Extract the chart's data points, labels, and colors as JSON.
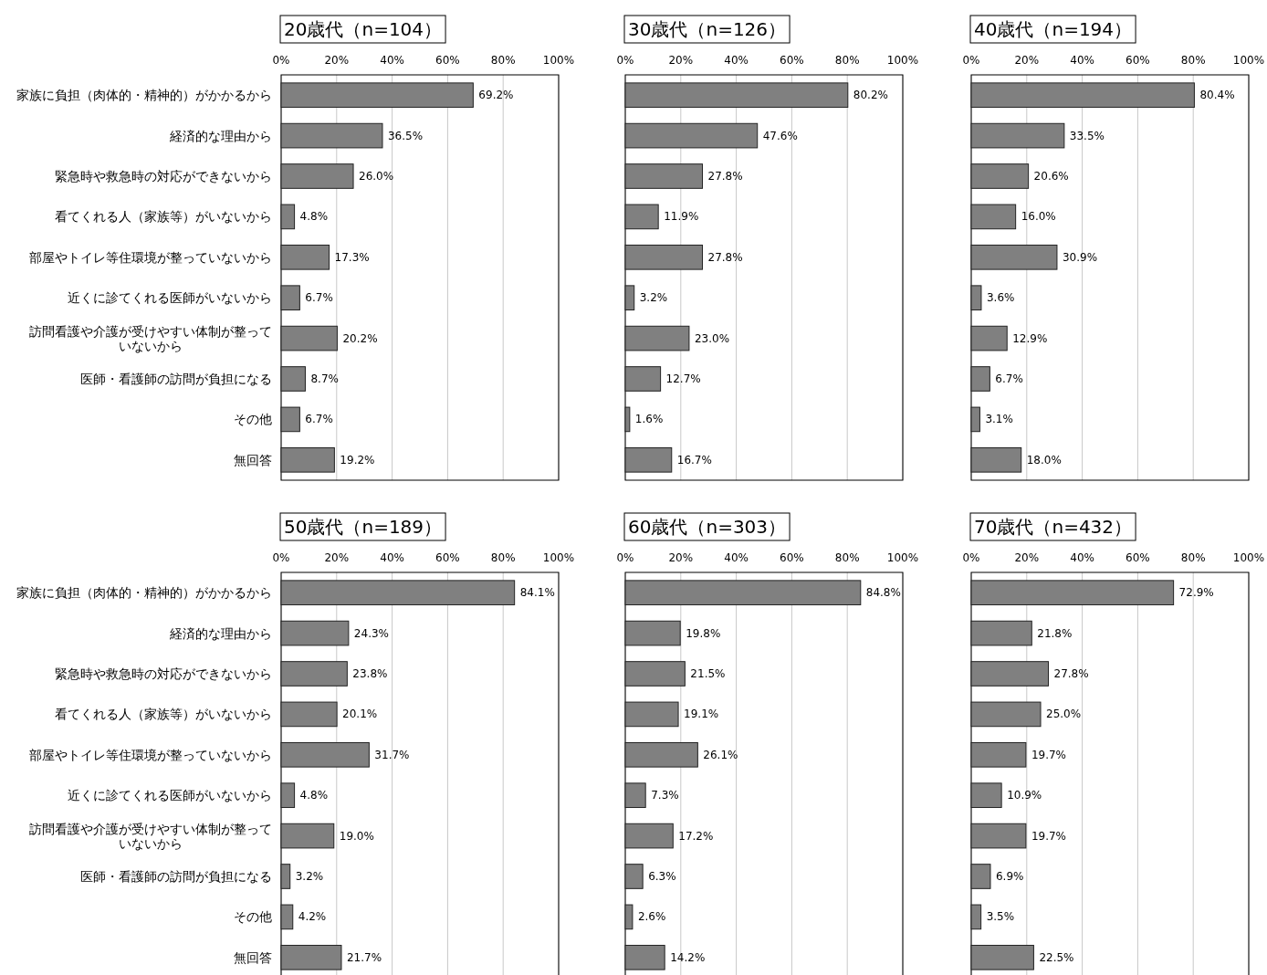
{
  "chart_data": [
    {
      "type": "bar",
      "orientation": "horizontal",
      "title": "20歳代（n=104）",
      "categories": [
        "家族に負担（肉体的・精神的）がかかるから",
        "経済的な理由から",
        "緊急時や救急時の対応ができないから",
        "看てくれる人（家族等）がいないから",
        "部屋やトイレ等住環境が整っていないから",
        "近くに診てくれる医師がいないから",
        "訪問看護や介護が受けやすい体制が整っていないから",
        "医師・看護師の訪問が負担になる",
        "その他",
        "無回答"
      ],
      "values": [
        69.2,
        36.5,
        26.0,
        4.8,
        17.3,
        6.7,
        20.2,
        8.7,
        6.7,
        19.2
      ],
      "value_labels": [
        "69.2%",
        "36.5%",
        "26.0%",
        "4.8%",
        "17.3%",
        "6.7%",
        "20.2%",
        "8.7%",
        "6.7%",
        "19.2%"
      ],
      "color": "#808080",
      "xlim": [
        0,
        100
      ],
      "xticks": [
        {
          "value": 0,
          "label": "0%"
        },
        {
          "value": 20,
          "label": "20%"
        },
        {
          "value": 40,
          "label": "40%"
        },
        {
          "value": 60,
          "label": "60%"
        },
        {
          "value": 80,
          "label": "80%"
        },
        {
          "value": 100,
          "label": "100%"
        }
      ],
      "grid": "x"
    },
    {
      "type": "bar",
      "orientation": "horizontal",
      "title": "30歳代（n=126）",
      "categories": [
        "家族に負担（肉体的・精神的）がかかるから",
        "経済的な理由から",
        "緊急時や救急時の対応ができないから",
        "看てくれる人（家族等）がいないから",
        "部屋やトイレ等住環境が整っていないから",
        "近くに診てくれる医師がいないから",
        "訪問看護や介護が受けやすい体制が整っていないから",
        "医師・看護師の訪問が負担になる",
        "その他",
        "無回答"
      ],
      "tick_labels": "x",
      "values": [
        80.2,
        47.6,
        27.8,
        11.9,
        27.8,
        3.2,
        23.0,
        12.7,
        1.6,
        16.7
      ],
      "value_labels": [
        "80.2%",
        "47.6%",
        "27.8%",
        "11.9%",
        "27.8%",
        "3.2%",
        "23.0%",
        "12.7%",
        "1.6%",
        "16.7%"
      ],
      "color": "#808080",
      "xlim": [
        0,
        100
      ],
      "xticks": [
        {
          "value": 0,
          "label": "0%"
        },
        {
          "value": 20,
          "label": "20%"
        },
        {
          "value": 40,
          "label": "40%"
        },
        {
          "value": 60,
          "label": "60%"
        },
        {
          "value": 80,
          "label": "80%"
        },
        {
          "value": 100,
          "label": "100%"
        }
      ],
      "grid": "x"
    },
    {
      "type": "bar",
      "orientation": "horizontal",
      "title": "40歳代（n=194）",
      "categories": [
        "家族に負担（肉体的・精神的）がかかるから",
        "経済的な理由から",
        "緊急時や救急時の対応ができないから",
        "看てくれる人（家族等）がいないから",
        "部屋やトイレ等住環境が整っていないから",
        "近くに診てくれる医師がいないから",
        "訪問看護や介護が受けやすい体制が整っていないから",
        "医師・看護師の訪問が負担になる",
        "その他",
        "無回答"
      ],
      "tick_labels": "x",
      "values": [
        80.4,
        33.5,
        20.6,
        16.0,
        30.9,
        3.6,
        12.9,
        6.7,
        3.1,
        18.0
      ],
      "value_labels": [
        "80.4%",
        "33.5%",
        "20.6%",
        "16.0%",
        "30.9%",
        "3.6%",
        "12.9%",
        "6.7%",
        "3.1%",
        "18.0%"
      ],
      "color": "#808080",
      "xlim": [
        0,
        100
      ],
      "xticks": [
        {
          "value": 0,
          "label": "0%"
        },
        {
          "value": 20,
          "label": "20%"
        },
        {
          "value": 40,
          "label": "40%"
        },
        {
          "value": 60,
          "label": "60%"
        },
        {
          "value": 80,
          "label": "80%"
        },
        {
          "value": 100,
          "label": "100%"
        }
      ],
      "grid": "x"
    },
    {
      "type": "bar",
      "orientation": "horizontal",
      "title": "50歳代（n=189）",
      "categories": [
        "家族に負担（肉体的・精神的）がかかるから",
        "経済的な理由から",
        "緊急時や救急時の対応ができないから",
        "看てくれる人（家族等）がいないから",
        "部屋やトイレ等住環境が整っていないから",
        "近くに診てくれる医師がいないから",
        "訪問看護や介護が受けやすい体制が整っていないから",
        "医師・看護師の訪問が負担になる",
        "その他",
        "無回答"
      ],
      "values": [
        84.1,
        24.3,
        23.8,
        20.1,
        31.7,
        4.8,
        19.0,
        3.2,
        4.2,
        21.7
      ],
      "value_labels": [
        "84.1%",
        "24.3%",
        "23.8%",
        "20.1%",
        "31.7%",
        "4.8%",
        "19.0%",
        "3.2%",
        "4.2%",
        "21.7%"
      ],
      "color": "#808080",
      "xlim": [
        0,
        100
      ],
      "xticks": [
        {
          "value": 0,
          "label": "0%"
        },
        {
          "value": 20,
          "label": "20%"
        },
        {
          "value": 40,
          "label": "40%"
        },
        {
          "value": 60,
          "label": "60%"
        },
        {
          "value": 80,
          "label": "80%"
        },
        {
          "value": 100,
          "label": "100%"
        }
      ],
      "grid": "x"
    },
    {
      "type": "bar",
      "orientation": "horizontal",
      "title": "60歳代（n=303）",
      "categories": [
        "家族に負担（肉体的・精神的）がかかるから",
        "経済的な理由から",
        "緊急時や救急時の対応ができないから",
        "看てくれる人（家族等）がいないから",
        "部屋やトイレ等住環境が整っていないから",
        "近くに診てくれる医師がいないから",
        "訪問看護や介護が受けやすい体制が整っていないから",
        "医師・看護師の訪問が負担になる",
        "その他",
        "無回答"
      ],
      "tick_labels": "x",
      "values": [
        84.8,
        19.8,
        21.5,
        19.1,
        26.1,
        7.3,
        17.2,
        6.3,
        2.6,
        14.2
      ],
      "value_labels": [
        "84.8%",
        "19.8%",
        "21.5%",
        "19.1%",
        "26.1%",
        "7.3%",
        "17.2%",
        "6.3%",
        "2.6%",
        "14.2%"
      ],
      "color": "#808080",
      "xlim": [
        0,
        100
      ],
      "xticks": [
        {
          "value": 0,
          "label": "0%"
        },
        {
          "value": 20,
          "label": "20%"
        },
        {
          "value": 40,
          "label": "40%"
        },
        {
          "value": 60,
          "label": "60%"
        },
        {
          "value": 80,
          "label": "80%"
        },
        {
          "value": 100,
          "label": "100%"
        }
      ],
      "grid": "x"
    },
    {
      "type": "bar",
      "orientation": "horizontal",
      "title": "70歳代（n=432）",
      "categories": [
        "家族に負担（肉体的・精神的）がかかるから",
        "経済的な理由から",
        "緊急時や救急時の対応ができないから",
        "看てくれる人（家族等）がいないから",
        "部屋やトイレ等住環境が整っていないから",
        "近くに診てくれる医師がいないから",
        "訪問看護や介護が受けやすい体制が整っていないから",
        "医師・看護師の訪問が負担になる",
        "その他",
        "無回答"
      ],
      "tick_labels": "x",
      "values": [
        72.9,
        21.8,
        27.8,
        25.0,
        19.7,
        10.9,
        19.7,
        6.9,
        3.5,
        22.5
      ],
      "value_labels": [
        "72.9%",
        "21.8%",
        "27.8%",
        "25.0%",
        "19.7%",
        "10.9%",
        "19.7%",
        "6.9%",
        "3.5%",
        "22.5%"
      ],
      "color": "#808080",
      "xlim": [
        0,
        100
      ],
      "xticks": [
        {
          "value": 0,
          "label": "0%"
        },
        {
          "value": 20,
          "label": "20%"
        },
        {
          "value": 40,
          "label": "40%"
        },
        {
          "value": 60,
          "label": "60%"
        },
        {
          "value": 80,
          "label": "80%"
        },
        {
          "value": 100,
          "label": "100%"
        }
      ],
      "grid": "x"
    }
  ]
}
